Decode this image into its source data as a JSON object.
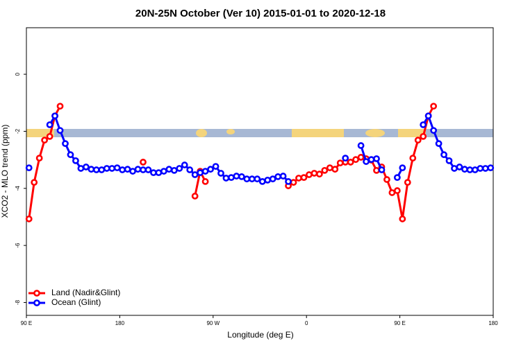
{
  "chart_data": {
    "type": "line",
    "title": "20N-25N October (Ver 10)   2015-01-01 to 2020-12-18",
    "x_label": "Longitude (deg E)",
    "y_label": "XCO2 - MLO trend (ppm)",
    "xlim": [
      90,
      540
    ],
    "ylim": [
      -8.45,
      1.63
    ],
    "xticks": [
      {
        "value": 90,
        "label": "90 E"
      },
      180,
      {
        "value": 270,
        "label": "90 W"
      },
      {
        "value": 360,
        "label": "0"
      },
      {
        "value": 450,
        "label": "90 E"
      },
      {
        "value": 540,
        "label": "180"
      }
    ],
    "yticks": [
      0,
      -2,
      -4,
      -6,
      -8
    ],
    "legend": "bottom-left",
    "x": [
      92.5,
      97.5,
      102.5,
      107.5,
      112.5,
      117.5,
      122.5,
      127.5,
      132.5,
      137.5,
      142.5,
      147.5,
      152.5,
      157.5,
      162.5,
      167.5,
      172.5,
      177.5,
      182.5,
      187.5,
      192.5,
      197.5,
      202.5,
      207.5,
      212.5,
      217.5,
      222.5,
      227.5,
      232.5,
      237.5,
      242.5,
      247.5,
      252.5,
      257.5,
      262.5,
      267.5,
      272.5,
      277.5,
      282.5,
      287.5,
      292.5,
      297.5,
      302.5,
      307.5,
      312.5,
      317.5,
      322.5,
      327.5,
      332.5,
      337.5,
      342.5,
      347.5,
      352.5,
      357.5,
      362.5,
      367.5,
      372.5,
      377.5,
      382.5,
      387.5,
      392.5,
      397.5,
      402.5,
      407.5,
      412.5,
      417.5,
      422.5,
      427.5,
      432.5,
      437.5,
      442.5,
      447.5,
      452.5,
      457.5,
      462.5,
      467.5,
      472.5,
      477.5,
      482.5,
      487.5,
      492.5,
      497.5,
      502.5,
      507.5,
      512.5,
      517.5,
      522.5,
      527.5,
      532.5,
      537.5
    ],
    "series": [
      {
        "name": "Land (Nadir&Glint)",
        "color": "#ff0000",
        "values": [
          -5.07,
          -3.79,
          -2.94,
          -2.31,
          -2.18,
          -1.46,
          -1.12,
          null,
          null,
          null,
          null,
          null,
          null,
          null,
          null,
          null,
          null,
          null,
          null,
          null,
          null,
          null,
          -3.08,
          null,
          null,
          null,
          null,
          null,
          null,
          null,
          null,
          null,
          -4.27,
          -3.4,
          -3.76,
          null,
          null,
          null,
          null,
          null,
          null,
          null,
          null,
          null,
          null,
          null,
          null,
          null,
          null,
          null,
          -3.91,
          -3.79,
          -3.64,
          -3.62,
          -3.52,
          -3.47,
          -3.5,
          -3.37,
          -3.28,
          -3.33,
          -3.11,
          -3.08,
          -3.08,
          -2.99,
          -2.91,
          -2.96,
          -3.01,
          -3.37,
          -3.25,
          -3.69,
          -4.15,
          -4.08,
          -5.07,
          -3.79,
          -2.94,
          -2.31,
          -2.18,
          -1.46,
          -1.12,
          null,
          null,
          null,
          null,
          null,
          null,
          null,
          null,
          null,
          null,
          null
        ]
      },
      {
        "name": "Ocean (Glint)",
        "color": "#0000ff",
        "values": [
          -3.28,
          null,
          null,
          null,
          -1.77,
          -1.46,
          -1.97,
          -2.43,
          -2.82,
          -3.03,
          -3.3,
          -3.25,
          -3.33,
          -3.35,
          -3.35,
          -3.3,
          -3.3,
          -3.28,
          -3.35,
          -3.33,
          -3.4,
          -3.33,
          -3.35,
          -3.35,
          -3.45,
          -3.45,
          -3.4,
          -3.33,
          -3.37,
          -3.3,
          -3.18,
          -3.35,
          -3.52,
          -3.45,
          -3.4,
          -3.33,
          -3.23,
          -3.47,
          -3.64,
          -3.62,
          -3.57,
          -3.59,
          -3.67,
          -3.67,
          -3.67,
          -3.76,
          -3.71,
          -3.67,
          -3.59,
          -3.57,
          -3.76,
          null,
          null,
          null,
          null,
          null,
          null,
          null,
          null,
          null,
          null,
          -2.94,
          null,
          null,
          -2.5,
          -3.06,
          -2.99,
          -2.96,
          -3.35,
          null,
          null,
          -3.62,
          -3.28,
          null,
          null,
          null,
          -1.77,
          -1.46,
          -1.97,
          -2.43,
          -2.82,
          -3.03,
          -3.3,
          -3.25,
          -3.33,
          -3.35,
          -3.35,
          -3.3,
          -3.3,
          -3.28
        ]
      }
    ]
  }
}
